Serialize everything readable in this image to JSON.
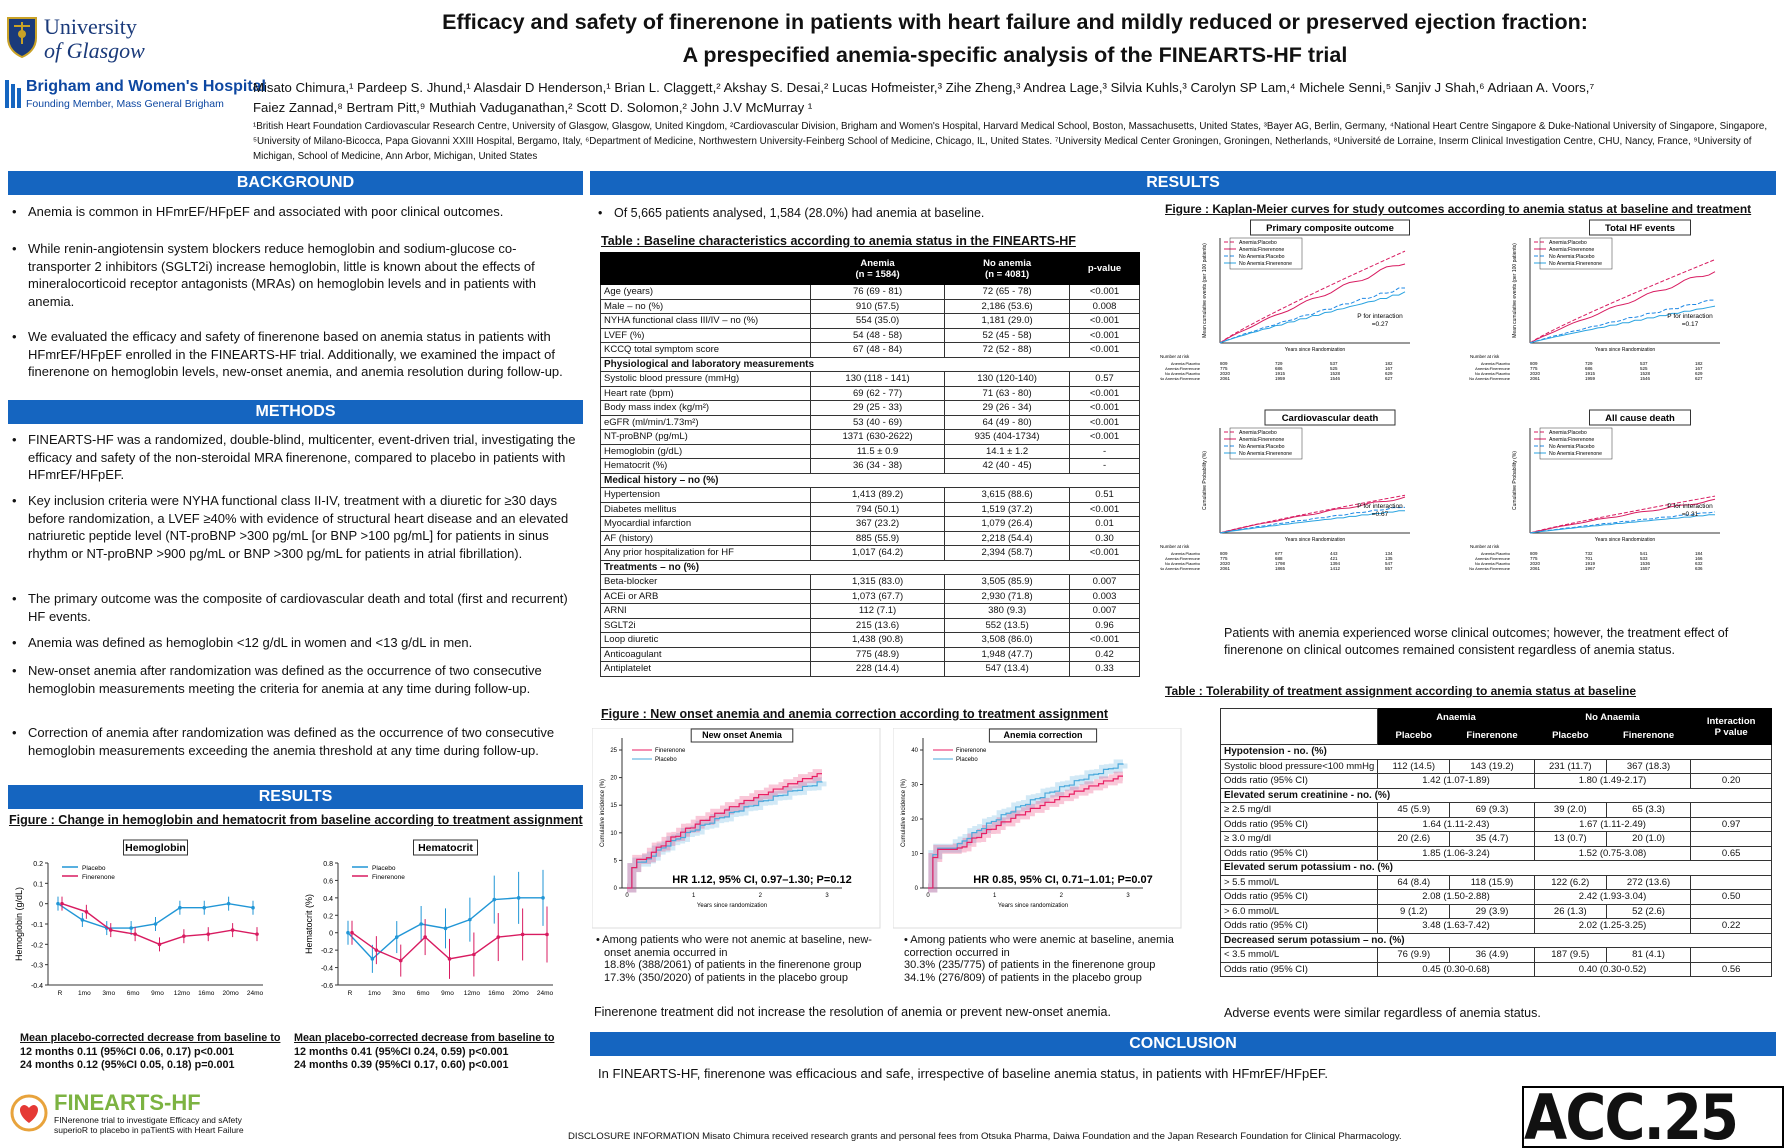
{
  "logos": {
    "glasgow_line1": "University",
    "glasgow_line2": "of Glasgow",
    "brigham_name": "Brigham and Women's Hospital",
    "brigham_sub": "Founding Member, Mass General Brigham",
    "acc": "ACC.25"
  },
  "title": {
    "line1": "Efficacy and safety of finerenone in patients with heart failure and mildly reduced or preserved ejection fraction:",
    "line2": "A prespecified anemia-specific analysis of the FINEARTS-HF trial"
  },
  "authors": {
    "line1": "Misato Chimura,¹ Pardeep S. Jhund,¹ Alasdair D Henderson,¹ Brian L. Claggett,² Akshay S. Desai,² Lucas Hofmeister,³ Zihe Zheng,³ Andrea Lage,³ Silvia Kuhls,³ Carolyn SP Lam,⁴ Michele Senni,⁵ Sanjiv J Shah,⁶ Adriaan A. Voors,⁷",
    "line2": "Faiez Zannad,⁸ Bertram Pitt,⁹ Muthiah Vaduganathan,² Scott D. Solomon,² John J.V McMurray ¹"
  },
  "affiliations": "¹British Heart Foundation Cardiovascular Research Centre, University of Glasgow, Glasgow, United Kingdom, ²Cardiovascular Division, Brigham and Women's Hospital, Harvard Medical School, Boston, Massachusetts, United States, ³Bayer AG, Berlin, Germany, ⁴National Heart Centre Singapore & Duke-National University of Singapore, Singapore, ⁵University of Milano-Bicocca, Papa Giovanni XXIII Hospital, Bergamo, Italy, ⁶Department of Medicine, Northwestern University-Feinberg School of Medicine, Chicago, IL, United States. ⁷University Medical Center Groningen, Groningen, Netherlands, ⁸Université de Lorraine, Inserm Clinical Investigation Centre, CHU, Nancy, France, ⁹University of Michigan, School of Medicine, Ann Arbor, Michigan, United States",
  "sections": {
    "background": "BACKGROUND",
    "methods": "METHODS",
    "results": "RESULTS",
    "conclusion": "CONCLUSION"
  },
  "background": [
    "Anemia is common in HFmrEF/HFpEF and associated with poor clinical outcomes.",
    "While renin-angiotensin system blockers reduce hemoglobin and sodium-glucose co-transporter 2 inhibitors (SGLT2i) increase hemoglobin, little is known about the effects of mineralocorticoid receptor antagonists (MRAs) on hemoglobin levels and in patients with anemia.",
    "We evaluated the efficacy and safety of finerenone based on anemia status in patients with HFmrEF/HFpEF enrolled in the FINEARTS-HF trial. Additionally, we examined the impact of finerenone on hemoglobin levels, new-onset anemia, and anemia resolution during follow-up."
  ],
  "methods": [
    "FINEARTS-HF was a randomized, double-blind, multicenter, event-driven trial, investigating the efficacy and safety of the non-steroidal MRA finerenone, compared to placebo in patients with HFmrEF/HFpEF.",
    "Key inclusion criteria were NYHA functional class II-IV, treatment with a diuretic for ≥30 days before randomization, a LVEF ≥40% with evidence of structural heart disease and an elevated natriuretic peptide level (NT-proBNP >300 pg/mL [or BNP >100 pg/mL] for patients in sinus rhythm or NT-proBNP >900 pg/mL or BNP >300 pg/mL for patients in atrial fibrillation).",
    "The primary outcome was the composite of cardiovascular death and total (first and recurrent) HF events.",
    "Anemia was defined as hemoglobin <12 g/dL in women and <13 g/dL in men.",
    "New-onset anemia after randomization was defined as the occurrence of two consecutive hemoglobin measurements meeting the criteria for anemia at any time during follow-up.",
    "Correction of anemia after randomization was defined as the occurrence of two consecutive hemoglobin measurements exceeding the anemia threshold at any time during follow-up."
  ],
  "hb_figure": {
    "caption": "Figure : Change in hemoglobin and hematocrit from baseline according to treatment assignment",
    "x_ticks": [
      "R",
      "1mo",
      "3mo",
      "6mo",
      "9mo",
      "12mo",
      "16mo",
      "20mo",
      "24mo"
    ],
    "legend": [
      "Placebo",
      "Finerenone"
    ],
    "colors": {
      "placebo": "#2196d6",
      "finerenone": "#d81b60"
    },
    "hb": {
      "title": "Hemoglobin",
      "ylabel": "Hemoglobin (g/dL)",
      "yticks": [
        "0.2",
        "0.1",
        "0",
        "-0.1",
        "-0.2",
        "-0.3",
        "-0.4"
      ],
      "placebo": [
        0,
        -0.08,
        -0.12,
        -0.12,
        -0.1,
        -0.02,
        -0.02,
        0.0,
        -0.02
      ],
      "finerenone": [
        0,
        -0.04,
        -0.13,
        -0.15,
        -0.2,
        -0.16,
        -0.15,
        -0.13,
        -0.15
      ],
      "summary_title": "Mean placebo-corrected decrease from baseline to",
      "summary1": "12 months 0.11 (95%CI 0.06, 0.17) p<0.001",
      "summary2": "24 months 0.12 (95%CI 0.05, 0.18) p=0.001"
    },
    "hct": {
      "title": "Hematocrit",
      "ylabel": "Hematocrit (%)",
      "yticks": [
        "0.8",
        "0.6",
        "0.4",
        "0.2",
        "0",
        "-0.2",
        "-0.4",
        "-0.6"
      ],
      "placebo": [
        0,
        -0.3,
        -0.05,
        0.1,
        0.05,
        0.15,
        0.38,
        0.4,
        0.4
      ],
      "finerenone": [
        0,
        -0.2,
        -0.32,
        -0.05,
        -0.3,
        -0.25,
        -0.05,
        -0.02,
        -0.02
      ],
      "summary_title": "Mean placebo-corrected decrease from baseline to",
      "summary1": "12 months 0.41 (95%CI 0.24, 0.59) p<0.001",
      "summary2": "24 months 0.39 (95%CI 0.17, 0.60) p<0.001"
    }
  },
  "results_intro": "Of 5,665 patients analysed, 1,584 (28.0%) had anemia at baseline.",
  "baseline_table": {
    "caption": "Table : Baseline characteristics according to anemia status in the FINEARTS-HF",
    "head": {
      "anemia": "Anemia",
      "anemia_n": "(n = 1584)",
      "noanemia": "No anemia",
      "noanemia_n": "(n = 4081)",
      "p": "p-value"
    },
    "rows": [
      {
        "l": "Age (years)",
        "a": "76 (69 - 81)",
        "n": "72 (65 - 78)",
        "p": "<0.001"
      },
      {
        "l": "Male – no (%)",
        "a": "910 (57.5)",
        "n": "2,186 (53.6)",
        "p": "0.008"
      },
      {
        "l": "NYHA functional class III/IV – no (%)",
        "a": "554 (35.0)",
        "n": "1,181 (29.0)",
        "p": "<0.001"
      },
      {
        "l": "LVEF (%)",
        "a": "54 (48 - 58)",
        "n": "52 (45 - 58)",
        "p": "<0.001"
      },
      {
        "l": "KCCQ total symptom score",
        "a": "67 (48 - 84)",
        "n": "72 (52 - 88)",
        "p": "<0.001"
      },
      {
        "s": "Physiological and laboratory measurements"
      },
      {
        "l": "Systolic blood pressure (mmHg)",
        "a": "130 (118 - 141)",
        "n": "130 (120-140)",
        "p": "0.57"
      },
      {
        "l": "Heart rate (bpm)",
        "a": "69 (62 - 77)",
        "n": "71 (63 - 80)",
        "p": "<0.001"
      },
      {
        "l": "Body mass index (kg/m²)",
        "a": "29 (25 - 33)",
        "n": "29 (26 - 34)",
        "p": "<0.001"
      },
      {
        "l": "eGFR (ml/min/1.73m²)",
        "a": "53 (40 - 69)",
        "n": "64 (49 - 80)",
        "p": "<0.001"
      },
      {
        "l": "NT-proBNP (pg/mL)",
        "a": "1371 (630-2622)",
        "n": "935 (404-1734)",
        "p": "<0.001"
      },
      {
        "l": "Hemoglobin (g/dL)",
        "a": "11.5 ± 0.9",
        "n": "14.1 ± 1.2",
        "p": "-"
      },
      {
        "l": "Hematocrit (%)",
        "a": "36 (34 - 38)",
        "n": "42 (40 - 45)",
        "p": "-"
      },
      {
        "s": "Medical history – no (%)"
      },
      {
        "l": "Hypertension",
        "a": "1,413 (89.2)",
        "n": "3,615 (88.6)",
        "p": "0.51"
      },
      {
        "l": "Diabetes mellitus",
        "a": "794 (50.1)",
        "n": "1,519 (37.2)",
        "p": "<0.001"
      },
      {
        "l": "Myocardial infarction",
        "a": "367 (23.2)",
        "n": "1,079 (26.4)",
        "p": "0.01"
      },
      {
        "l": "AF (history)",
        "a": "885 (55.9)",
        "n": "2,218 (54.4)",
        "p": "0.30"
      },
      {
        "l": "Any prior hospitalization for HF",
        "a": "1,017 (64.2)",
        "n": "2,394 (58.7)",
        "p": "<0.001"
      },
      {
        "s": "Treatments – no (%)"
      },
      {
        "l": "Beta-blocker",
        "a": "1,315 (83.0)",
        "n": "3,505 (85.9)",
        "p": "0.007"
      },
      {
        "l": "ACEi or ARB",
        "a": "1,073 (67.7)",
        "n": "2,930 (71.8)",
        "p": "0.003"
      },
      {
        "l": "ARNI",
        "a": "112 (7.1)",
        "n": "380 (9.3)",
        "p": "0.007"
      },
      {
        "l": "SGLT2i",
        "a": "215 (13.6)",
        "n": "552 (13.5)",
        "p": "0.96"
      },
      {
        "l": "Loop diuretic",
        "a": "1,438 (90.8)",
        "n": "3,508 (86.0)",
        "p": "<0.001"
      },
      {
        "l": "Anticoagulant",
        "a": "775 (48.9)",
        "n": "1,948 (47.7)",
        "p": "0.42"
      },
      {
        "l": "Antiplatelet",
        "a": "228 (14.4)",
        "n": "547 (13.4)",
        "p": "0.33"
      }
    ]
  },
  "onset_figure": {
    "caption": "Figure : New onset anemia and anemia correction according to treatment assignment",
    "xlabel": "Years since randomization",
    "ylabel": "Cumulative incidence (%)",
    "legend": [
      "Finerenone",
      "Placebo"
    ],
    "new": {
      "title": "New onset Anemia",
      "hr": "HR 1.12, 95% CI, 0.97–1.30; P=0.12",
      "yticks": [
        "0",
        "5",
        "10",
        "15",
        "20",
        "25"
      ],
      "xticks": [
        "0",
        "1",
        "2",
        "3"
      ],
      "note_title": "Among patients who were not anemic at baseline, new-onset anemia occurred in",
      "note1": "18.8% (388/2061) of patients in the finerenone group",
      "note2": "17.3% (350/2020) of patients in the placebo group"
    },
    "corr": {
      "title": "Anemia correction",
      "hr": "HR 0.85, 95% CI, 0.71–1.01; P=0.07",
      "yticks": [
        "0",
        "10",
        "20",
        "30",
        "40"
      ],
      "xticks": [
        "0",
        "1",
        "2",
        "3"
      ],
      "note_title": "Among patients who were anemic at baseline, anemia correction occurred in",
      "note1": "30.3% (235/775) of patients in the finerenone group",
      "note2": "34.1% (276/809) of patients in the placebo group"
    },
    "summary": "Finerenone treatment did not increase the resolution of anemia or prevent new-onset anemia."
  },
  "km_figure": {
    "caption": "Figure : Kaplan-Meier curves for study outcomes according to anemia status at baseline and treatment",
    "legend": [
      "Anemia:Placebo",
      "Anemia:Finerenone",
      "No Anemia:Placebo",
      "No Anemia:Finerenone"
    ],
    "xlabel": "Years since Randomization",
    "risk_title": "Number at risk",
    "panels": [
      {
        "title": "Primary composite outcome",
        "ylabel": "Mean cumulative events (per 100 patients)",
        "pint": "P for interaction",
        "pval": "=0.27",
        "risk": [
          [
            "809",
            "729",
            "537",
            "182"
          ],
          [
            "775",
            "686",
            "525",
            "167"
          ],
          [
            "2020",
            "1915",
            "1528",
            "629"
          ],
          [
            "2061",
            "1959",
            "1546",
            "627"
          ]
        ]
      },
      {
        "title": "Total HF events",
        "ylabel": "Mean cumulative events (per 100 patients)",
        "pint": "P for interaction",
        "pval": "=0.17",
        "risk": [
          [
            "809",
            "729",
            "537",
            "182"
          ],
          [
            "775",
            "686",
            "525",
            "167"
          ],
          [
            "2020",
            "1915",
            "1528",
            "629"
          ],
          [
            "2061",
            "1959",
            "1546",
            "627"
          ]
        ]
      },
      {
        "title": "Cardiovascular death",
        "ylabel": "Cumulative Probability (%)",
        "pint": "P for interaction",
        "pval": "=0.67",
        "risk": [
          [
            "809",
            "677",
            "443",
            "134"
          ],
          [
            "775",
            "688",
            "421",
            "135"
          ],
          [
            "2020",
            "1798",
            "1394",
            "547"
          ],
          [
            "2061",
            "1865",
            "1412",
            "557"
          ]
        ]
      },
      {
        "title": "All cause death",
        "ylabel": "Cumulative Probability (%)",
        "pint": "P for interaction",
        "pval": "=0.31",
        "risk": [
          [
            "809",
            "732",
            "541",
            "184"
          ],
          [
            "775",
            "701",
            "533",
            "166"
          ],
          [
            "2020",
            "1919",
            "1536",
            "632"
          ],
          [
            "2061",
            "1967",
            "1557",
            "636"
          ]
        ]
      }
    ],
    "summary": "Patients with anemia experienced worse clinical outcomes; however, the treatment effect of finerenone on clinical outcomes remained consistent regardless of anemia status."
  },
  "tol_table": {
    "caption": "Table : Tolerability of treatment assignment according to anemia status at baseline",
    "head": {
      "anaemia": "Anaemia",
      "noanaemia": "No Anaemia",
      "interaction": "Interaction",
      "pvalue": "P value",
      "placebo": "Placebo",
      "finerenone": "Finerenone"
    },
    "rows": [
      {
        "s": "Hypotension - no. (%)"
      },
      {
        "l": "Systolic blood pressure<100 mmHg",
        "v": [
          "112 (14.5)",
          "143 (19.2)",
          "231 (11.7)",
          "367 (18.3)"
        ],
        "p": ""
      },
      {
        "l": "Odds ratio (95% CI)",
        "o": [
          "1.42 (1.07-1.89)",
          "1.80 (1.49-2.17)"
        ],
        "p": "0.20"
      },
      {
        "s": "Elevated serum creatinine - no. (%)"
      },
      {
        "l": "≥ 2.5 mg/dl",
        "v": [
          "45 (5.9)",
          "69 (9.3)",
          "39 (2.0)",
          "65 (3.3)"
        ],
        "p": ""
      },
      {
        "l": "Odds ratio (95% CI)",
        "o": [
          "1.64 (1.11-2.43)",
          "1.67 (1.11-2.49)"
        ],
        "p": "0.97"
      },
      {
        "l": "≥ 3.0 mg/dl",
        "v": [
          "20 (2.6)",
          "35 (4.7)",
          "13 (0.7)",
          "20 (1.0)"
        ],
        "p": ""
      },
      {
        "l": "Odds ratio (95% CI)",
        "o": [
          "1.85 (1.06-3.24)",
          "1.52 (0.75-3.08)"
        ],
        "p": "0.65"
      },
      {
        "s": "Elevated serum potassium - no. (%)"
      },
      {
        "l": "> 5.5 mmol/L",
        "v": [
          "64 (8.4)",
          "118 (15.9)",
          "122 (6.2)",
          "272 (13.6)"
        ],
        "p": ""
      },
      {
        "l": "Odds ratio (95% CI)",
        "o": [
          "2.08 (1.50-2.88)",
          "2.42 (1.93-3.04)"
        ],
        "p": "0.50"
      },
      {
        "l": "> 6.0 mmol/L",
        "v": [
          "9 (1.2)",
          "29 (3.9)",
          "26 (1.3)",
          "52 (2.6)"
        ],
        "p": ""
      },
      {
        "l": "Odds ratio (95% CI)",
        "o": [
          "3.48 (1.63-7.42)",
          "2.02 (1.25-3.25)"
        ],
        "p": "0.22"
      },
      {
        "s": "Decreased serum potassium – no. (%)"
      },
      {
        "l": "< 3.5 mmol/L",
        "v": [
          "76 (9.9)",
          "36 (4.9)",
          "187 (9.5)",
          "81 (4.1)"
        ],
        "p": ""
      },
      {
        "l": "Odds ratio (95% CI)",
        "o": [
          "0.45 (0.30-0.68)",
          "0.40 (0.30-0.52)"
        ],
        "p": "0.56"
      }
    ],
    "summary": "Adverse events were similar regardless of anemia status."
  },
  "conclusion": "In FINEARTS-HF, finerenone was efficacious and safe, irrespective of baseline anemia status, in patients with HFmrEF/HFpEF.",
  "fineartslogo": {
    "name": "FINEARTS-HF",
    "sub1": "FINerenone trial to investigate Efficacy and sAfety",
    "sub2": "superioR to placebo in paTientS with Heart Failure"
  },
  "disclosure": "DISCLOSURE INFORMATION  Misato Chimura received research grants and personal fees from Otsuka Pharma, Daiwa Foundation and the Japan Research Foundation for Clinical Pharmacology."
}
